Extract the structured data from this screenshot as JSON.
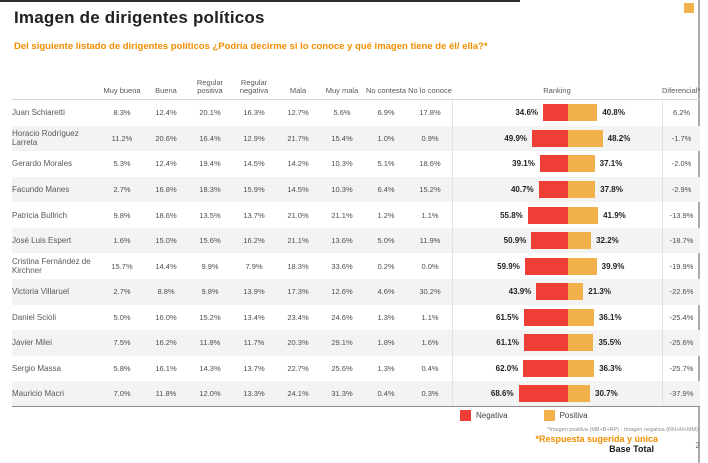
{
  "page": {
    "title": "Imagen de dirigentes políticos",
    "question": "Del siguiente listado de dirigentes políticos ¿Podría decirme si lo conoce y qué imagen tiene de él/ ella?*",
    "page_number": "2"
  },
  "colors": {
    "negative": "#ee3e36",
    "positive": "#f2b04a",
    "accent_orange": "#f28e00"
  },
  "table": {
    "columns": [
      "Muy buena",
      "Buena",
      "Regular positiva",
      "Regular negativa",
      "Mala",
      "Muy mala",
      "No contesta",
      "No lo conoce",
      "Ranking",
      "Diferencial*"
    ],
    "rows": [
      {
        "name": "Juan Schiaretti",
        "values": [
          "8.3%",
          "12.4%",
          "20.1%",
          "16.3%",
          "12.7%",
          "5.6%",
          "6.9%",
          "17.8%"
        ],
        "ranking": {
          "negative": 34.6,
          "negative_label": "34.6%",
          "positive": 40.8,
          "positive_label": "40.8%"
        },
        "diferencial": "6.2%"
      },
      {
        "name": "Horacio Rodríguez Larreta",
        "values": [
          "11.2%",
          "20.6%",
          "16.4%",
          "12.9%",
          "21.7%",
          "15.4%",
          "1.0%",
          "0.9%"
        ],
        "ranking": {
          "negative": 49.9,
          "negative_label": "49.9%",
          "positive": 48.2,
          "positive_label": "48.2%"
        },
        "diferencial": "-1.7%"
      },
      {
        "name": "Gerardo Morales",
        "values": [
          "5.3%",
          "12.4%",
          "19.4%",
          "14.5%",
          "14.2%",
          "10.3%",
          "5.1%",
          "18.6%"
        ],
        "ranking": {
          "negative": 39.1,
          "negative_label": "39.1%",
          "positive": 37.1,
          "positive_label": "37.1%"
        },
        "diferencial": "-2.0%"
      },
      {
        "name": "Facundo Manes",
        "values": [
          "2.7%",
          "16.8%",
          "18.3%",
          "15.9%",
          "14.5%",
          "10.3%",
          "6.4%",
          "15.2%"
        ],
        "ranking": {
          "negative": 40.7,
          "negative_label": "40.7%",
          "positive": 37.8,
          "positive_label": "37.8%"
        },
        "diferencial": "-2.9%"
      },
      {
        "name": "Patricia Bullrich",
        "values": [
          "9.8%",
          "18.6%",
          "13.5%",
          "13.7%",
          "21.0%",
          "21.1%",
          "1.2%",
          "1.1%"
        ],
        "ranking": {
          "negative": 55.8,
          "negative_label": "55.8%",
          "positive": 41.9,
          "positive_label": "41.9%"
        },
        "diferencial": "-13.9%"
      },
      {
        "name": "José Luis Espert",
        "values": [
          "1.6%",
          "15.0%",
          "15.6%",
          "16.2%",
          "21.1%",
          "13.6%",
          "5.0%",
          "11.9%"
        ],
        "ranking": {
          "negative": 50.9,
          "negative_label": "50.9%",
          "positive": 32.2,
          "positive_label": "32.2%"
        },
        "diferencial": "-18.7%"
      },
      {
        "name": "Cristina Fernández de Kirchner",
        "values": [
          "15.7%",
          "14.4%",
          "9.9%",
          "7.9%",
          "18.3%",
          "33.6%",
          "0.2%",
          "0.0%"
        ],
        "ranking": {
          "negative": 59.9,
          "negative_label": "59.9%",
          "positive": 39.9,
          "positive_label": "39.9%"
        },
        "diferencial": "-19.9%"
      },
      {
        "name": "Victoria Villaruel",
        "values": [
          "2.7%",
          "8.8%",
          "9.8%",
          "13.9%",
          "17.3%",
          "12.6%",
          "4.6%",
          "30.2%"
        ],
        "ranking": {
          "negative": 43.9,
          "negative_label": "43.9%",
          "positive": 21.3,
          "positive_label": "21.3%"
        },
        "diferencial": "-22.6%"
      },
      {
        "name": "Daniel Scioli",
        "values": [
          "5.0%",
          "16.0%",
          "15.2%",
          "13.4%",
          "23.4%",
          "24.6%",
          "1.3%",
          "1.1%"
        ],
        "ranking": {
          "negative": 61.5,
          "negative_label": "61.5%",
          "positive": 36.1,
          "positive_label": "36.1%"
        },
        "diferencial": "-25.4%"
      },
      {
        "name": "Javier Milei",
        "values": [
          "7.5%",
          "16.2%",
          "11.8%",
          "11.7%",
          "20.3%",
          "29.1%",
          "1.8%",
          "1.6%"
        ],
        "ranking": {
          "negative": 61.1,
          "negative_label": "61.1%",
          "positive": 35.5,
          "positive_label": "35.5%"
        },
        "diferencial": "-25.6%"
      },
      {
        "name": "Sergio Massa",
        "values": [
          "5.8%",
          "16.1%",
          "14.3%",
          "13.7%",
          "22.7%",
          "25.6%",
          "1.3%",
          "0.4%"
        ],
        "ranking": {
          "negative": 62.0,
          "negative_label": "62.0%",
          "positive": 36.3,
          "positive_label": "36.3%"
        },
        "diferencial": "-25.7%"
      },
      {
        "name": "Mauricio Macri",
        "values": [
          "7.0%",
          "11.8%",
          "12.0%",
          "13.3%",
          "24.1%",
          "31.3%",
          "0.4%",
          "0.3%"
        ],
        "ranking": {
          "negative": 68.6,
          "negative_label": "68.6%",
          "positive": 30.7,
          "positive_label": "30.7%"
        },
        "diferencial": "-37.9%"
      }
    ]
  },
  "legend": {
    "negative_label": "Negativa",
    "positive_label": "Positiva"
  },
  "footnotes": {
    "formula": "*Imagen positiva (MB+B+RP) - Imagen negativa (RN+M+MM)",
    "note": "*Respuesta sugerida y única",
    "base": "Base Total"
  },
  "chart_data": {
    "type": "bar",
    "subtype": "diverging-horizontal",
    "title": "Imagen de dirigentes políticos",
    "categories": [
      "Juan Schiaretti",
      "Horacio Rodríguez Larreta",
      "Gerardo Morales",
      "Facundo Manes",
      "Patricia Bullrich",
      "José Luis Espert",
      "Cristina Fernández de Kirchner",
      "Victoria Villaruel",
      "Daniel Scioli",
      "Javier Milei",
      "Sergio Massa",
      "Mauricio Macri"
    ],
    "series": [
      {
        "name": "Negativa",
        "color": "#ee3e36",
        "values": [
          34.6,
          49.9,
          39.1,
          40.7,
          55.8,
          50.9,
          59.9,
          43.9,
          61.5,
          61.1,
          62.0,
          68.6
        ]
      },
      {
        "name": "Positiva",
        "color": "#f2b04a",
        "values": [
          40.8,
          48.2,
          37.1,
          37.8,
          41.9,
          32.2,
          39.9,
          21.3,
          36.1,
          35.5,
          36.3,
          30.7
        ]
      }
    ],
    "diferencial": [
      6.2,
      -1.7,
      -2.0,
      -2.9,
      -13.9,
      -18.7,
      -19.9,
      -22.6,
      -25.4,
      -25.6,
      -25.7,
      -37.9
    ],
    "legend_position": "bottom",
    "grid": false,
    "value_unit": "%"
  }
}
